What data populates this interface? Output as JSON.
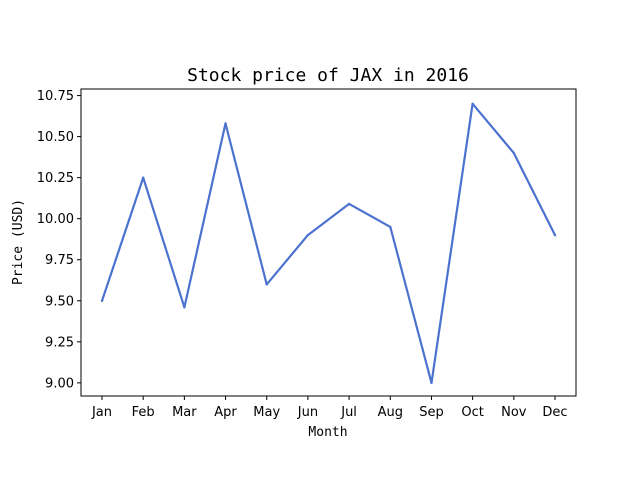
{
  "chart_data": {
    "type": "line",
    "title": "Stock price of JAX in 2016",
    "xlabel": "Month",
    "ylabel": "Price (USD)",
    "categories": [
      "Jan",
      "Feb",
      "Mar",
      "Apr",
      "May",
      "Jun",
      "Jul",
      "Aug",
      "Sep",
      "Oct",
      "Nov",
      "Dec"
    ],
    "series": [
      {
        "values": [
          9.5,
          10.25,
          9.46,
          10.58,
          9.6,
          9.9,
          10.09,
          9.95,
          9.0,
          10.7,
          10.4,
          9.9
        ],
        "color": "#4c72d0"
      }
    ],
    "ylim": [
      8.92,
      10.79
    ],
    "yticks": [
      "9.00",
      "9.25",
      "9.50",
      "9.75",
      "10.00",
      "10.25",
      "10.50",
      "10.75"
    ],
    "grid": false,
    "legend": "none"
  }
}
